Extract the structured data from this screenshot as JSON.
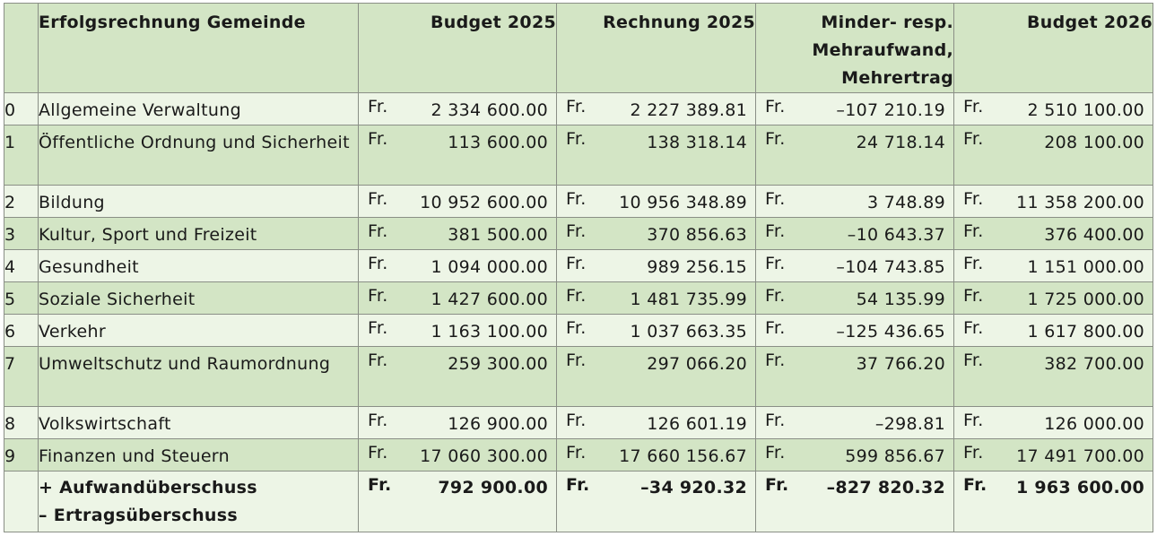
{
  "table": {
    "headers": {
      "col0": "",
      "title": "Erfolgsrechnung Gemeinde",
      "budget_2025": "Budget 2025",
      "rechnung_2025": "Rechnung 2025",
      "diff": "Minder- resp. Mehraufwand, Mehrertrag",
      "budget_2026": "Budget 2026"
    },
    "currency": "Fr.",
    "rows": [
      {
        "num": "0",
        "name": "Allgemeine Verwaltung",
        "b2025": "2 334 600.00",
        "r2025": "2 227 389.81",
        "diff": "–107 210.19",
        "b2026": "2 510 100.00"
      },
      {
        "num": "1",
        "name": "Öffentliche Ordnung und Sicherheit",
        "b2025": "113 600.00",
        "r2025": "138 318.14",
        "diff": "24 718.14",
        "b2026": "208 100.00"
      },
      {
        "num": "2",
        "name": "Bildung",
        "b2025": "10 952 600.00",
        "r2025": "10 956 348.89",
        "diff": "3 748.89",
        "b2026": "11 358 200.00"
      },
      {
        "num": "3",
        "name": "Kultur, Sport und Freizeit",
        "b2025": "381 500.00",
        "r2025": "370 856.63",
        "diff": "–10 643.37",
        "b2026": "376 400.00"
      },
      {
        "num": "4",
        "name": "Gesundheit",
        "b2025": "1 094 000.00",
        "r2025": "989 256.15",
        "diff": "–104 743.85",
        "b2026": "1 151 000.00"
      },
      {
        "num": "5",
        "name": "Soziale Sicherheit",
        "b2025": "1 427 600.00",
        "r2025": "1 481 735.99",
        "diff": "54 135.99",
        "b2026": "1 725 000.00"
      },
      {
        "num": "6",
        "name": "Verkehr",
        "b2025": "1 163 100.00",
        "r2025": "1 037 663.35",
        "diff": "–125 436.65",
        "b2026": "1 617 800.00"
      },
      {
        "num": "7",
        "name": "Umweltschutz und Raumordnung",
        "b2025": "259 300.00",
        "r2025": "297 066.20",
        "diff": "37 766.20",
        "b2026": "382 700.00"
      },
      {
        "num": "8",
        "name": "Volkswirtschaft",
        "b2025": "126 900.00",
        "r2025": "126 601.19",
        "diff": "–298.81",
        "b2026": "126 000.00"
      },
      {
        "num": "9",
        "name": "Finanzen und Steuern",
        "b2025": "17 060 300.00",
        "r2025": "17 660 156.67",
        "diff": "599 856.67",
        "b2026": "17 491 700.00"
      }
    ],
    "total": {
      "line1": "+ Aufwandüberschuss",
      "line2": "– Ertragsüberschuss",
      "b2025": "792 900.00",
      "r2025": "–34 920.32",
      "diff": "–827 820.32",
      "b2026": "1 963 600.00"
    }
  }
}
